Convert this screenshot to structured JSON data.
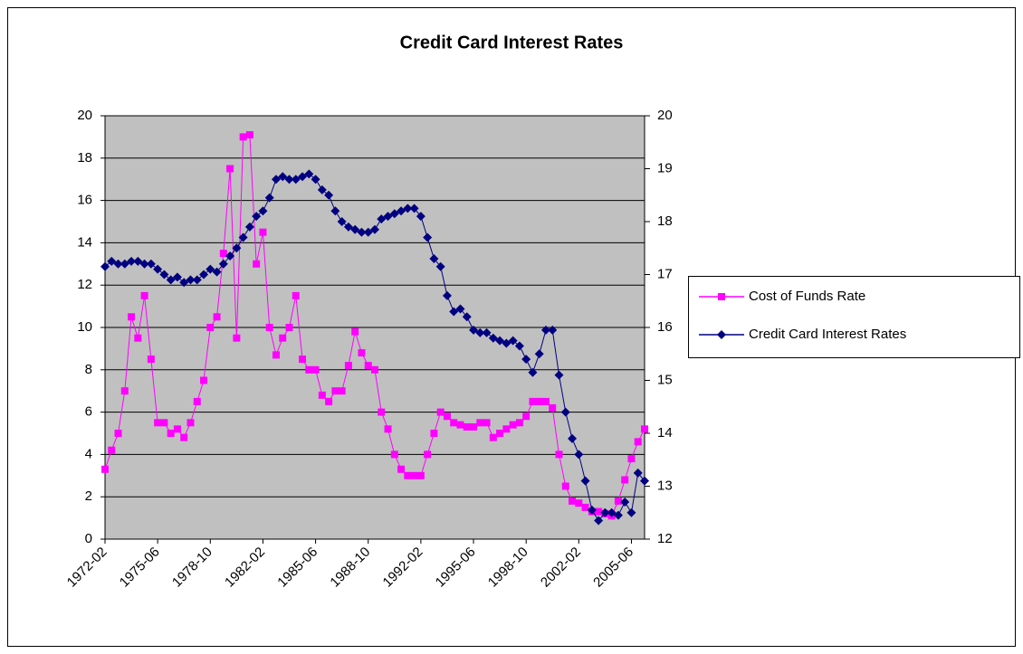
{
  "chart_data": {
    "type": "line",
    "title": "Credit Card Interest Rates",
    "categories": [
      "1972-02",
      null,
      null,
      null,
      null,
      null,
      null,
      null,
      "1975-06",
      null,
      null,
      null,
      null,
      null,
      null,
      null,
      "1978-10",
      null,
      null,
      null,
      null,
      null,
      null,
      null,
      "1982-02",
      null,
      null,
      null,
      null,
      null,
      null,
      null,
      "1985-06",
      null,
      null,
      null,
      null,
      null,
      null,
      null,
      "1988-10",
      null,
      null,
      null,
      null,
      null,
      null,
      null,
      "1992-02",
      null,
      null,
      null,
      null,
      null,
      null,
      null,
      "1995-06",
      null,
      null,
      null,
      null,
      null,
      null,
      null,
      "1998-10",
      null,
      null,
      null,
      null,
      null,
      null,
      null,
      "2002-02",
      null,
      null,
      null,
      null,
      null,
      null,
      null,
      "2005-06",
      null,
      null
    ],
    "ylim": [
      0,
      20
    ],
    "yticks": [
      0,
      2,
      4,
      6,
      8,
      10,
      12,
      14,
      16,
      18,
      20
    ],
    "y2lim": [
      12,
      20
    ],
    "y2ticks": [
      12,
      13,
      14,
      15,
      16,
      17,
      18,
      19,
      20
    ],
    "grid": true,
    "legend": "right",
    "series": [
      {
        "name": "Cost of Funds Rate",
        "color": "#ff00ff",
        "marker": "square",
        "values": [
          3.3,
          4.2,
          5.0,
          7.0,
          10.5,
          9.5,
          11.5,
          8.5,
          5.5,
          5.5,
          5.0,
          5.2,
          4.8,
          5.5,
          6.5,
          7.5,
          10.0,
          10.5,
          13.5,
          17.5,
          9.5,
          19.0,
          19.1,
          13.0,
          14.5,
          10.0,
          8.7,
          9.5,
          10.0,
          11.5,
          8.5,
          8.0,
          8.0,
          6.8,
          6.5,
          7.0,
          7.0,
          8.2,
          9.8,
          8.8,
          8.2,
          8.0,
          6.0,
          5.2,
          4.0,
          3.3,
          3.0,
          3.0,
          3.0,
          4.0,
          5.0,
          6.0,
          5.8,
          5.5,
          5.4,
          5.3,
          5.3,
          5.5,
          5.5,
          4.8,
          5.0,
          5.2,
          5.4,
          5.5,
          5.8,
          6.5,
          6.5,
          6.5,
          6.2,
          4.0,
          2.5,
          1.8,
          1.7,
          1.5,
          1.3,
          1.3,
          1.2,
          1.1,
          1.8,
          2.8,
          3.8,
          4.6,
          5.2
        ]
      },
      {
        "name": "Credit Card Interest Rates",
        "color": "#000080",
        "marker": "diamond",
        "axis": "y2",
        "values": [
          17.15,
          17.25,
          17.2,
          17.2,
          17.25,
          17.25,
          17.2,
          17.2,
          17.1,
          17.0,
          16.9,
          16.95,
          16.85,
          16.9,
          16.9,
          17.0,
          17.1,
          17.05,
          17.2,
          17.35,
          17.5,
          17.7,
          17.9,
          18.1,
          18.2,
          18.45,
          18.8,
          18.85,
          18.8,
          18.8,
          18.85,
          18.9,
          18.8,
          18.6,
          18.5,
          18.2,
          18.0,
          17.9,
          17.85,
          17.8,
          17.8,
          17.85,
          18.05,
          18.1,
          18.15,
          18.2,
          18.25,
          18.25,
          18.1,
          17.7,
          17.3,
          17.15,
          16.6,
          16.3,
          16.35,
          16.2,
          15.95,
          15.9,
          15.9,
          15.8,
          15.75,
          15.7,
          15.75,
          15.65,
          15.4,
          15.15,
          15.5,
          15.95,
          15.95,
          15.1,
          14.4,
          13.9,
          13.6,
          13.1,
          12.55,
          12.35,
          12.5,
          12.5,
          12.45,
          12.7,
          12.5,
          13.25,
          13.1
        ]
      }
    ]
  }
}
